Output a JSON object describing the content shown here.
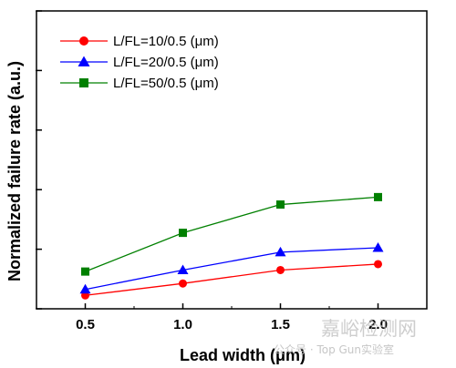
{
  "chart_data": {
    "type": "line",
    "title": "",
    "xlabel": "Lead width (μm)",
    "ylabel": "Normalized failure rate (a.u.)",
    "x": [
      0.5,
      1.0,
      1.5,
      2.0
    ],
    "xticks": [
      "0.5",
      "1.0",
      "1.5",
      "2.0"
    ],
    "xlim": [
      0.25,
      2.25
    ],
    "ylim": [
      0,
      10
    ],
    "y_tick_labels_shown": false,
    "grid": false,
    "legend_position": "top-left",
    "series": [
      {
        "name": "L/FL=10/0.5 (μm)",
        "marker": "circle",
        "color": "#ff0000",
        "values": [
          0.45,
          0.85,
          1.3,
          1.5
        ]
      },
      {
        "name": "L/FL=20/0.5 (μm)",
        "marker": "triangle",
        "color": "#0000ff",
        "values": [
          0.65,
          1.3,
          1.9,
          2.05
        ]
      },
      {
        "name": "L/FL=50/0.5 (μm)",
        "marker": "square",
        "color": "#008000",
        "values": [
          1.25,
          2.55,
          3.5,
          3.75
        ]
      }
    ]
  },
  "watermark": {
    "site": "嘉峪检测网",
    "account": "公众号 · Top Gun实验室"
  }
}
